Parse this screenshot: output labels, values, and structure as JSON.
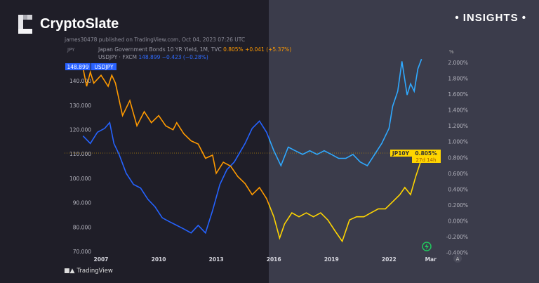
{
  "brand": {
    "name": "CryptoSlate",
    "tag": "• INSIGHTS •"
  },
  "publisher_line": "james30478 published on TradingView.com, Oct 04, 2023 07:26 UTC",
  "legend": {
    "series1_title": "Japan Government Bonds 10 YR Yield, 1M, TVC",
    "series1_value": "0.805%",
    "series1_change": "+0.041 (+5.37%)",
    "series2_title": "USDJPY · FXCM",
    "series2_value": "148.899",
    "series2_change": "−0.423 (−0.28%)",
    "left_unit": "JPY",
    "right_unit": "%"
  },
  "labels": {
    "usdjpy_price": "148.899",
    "usdjpy_name": "USDJPY",
    "jp10y_name": "JP10Y",
    "jp10y_value": "0.805%",
    "jp10y_countdown": "27d 14h",
    "auto_scale": "A",
    "tradingview": "TradingView"
  },
  "colors": {
    "jp10y_left": "#ff9a00",
    "jp10y_right": "#ffd500",
    "usdjpy_left": "#2563ff",
    "usdjpy_right": "#2fa9ff",
    "panel_left": "#1f1e28",
    "panel_right": "#3b3c4b"
  },
  "chart_data": {
    "type": "line",
    "x_ticks": [
      {
        "label": "2007",
        "year": 2007
      },
      {
        "label": "2010",
        "year": 2010
      },
      {
        "label": "2013",
        "year": 2013
      },
      {
        "label": "2016",
        "year": 2016
      },
      {
        "label": "2019",
        "year": 2019
      },
      {
        "label": "2022",
        "year": 2022
      },
      {
        "label": "Mar",
        "year": 2024.17
      }
    ],
    "xlim": [
      2005.1,
      2024.4
    ],
    "left_axis": {
      "ylim": [
        68,
        153
      ],
      "ticks": [
        "70.000",
        "80.000",
        "90.000",
        "100.000",
        "110.000",
        "120.000",
        "130.000",
        "140.000"
      ]
    },
    "right_axis": {
      "ylim": [
        -0.45,
        2.17
      ],
      "ticks": [
        "-0.400%",
        "-0.200%",
        "0.000%",
        "0.200%",
        "0.400%",
        "0.600%",
        "0.800%",
        "1.000%",
        "1.200%",
        "1.400%",
        "1.600%",
        "1.800%",
        "2.000%"
      ]
    },
    "series": [
      {
        "name": "USDJPY",
        "axis": "left",
        "points": [
          [
            2006.06,
            117.4
          ],
          [
            2006.44,
            114.3
          ],
          [
            2006.81,
            118.9
          ],
          [
            2007.19,
            120.5
          ],
          [
            2007.45,
            122.9
          ],
          [
            2007.67,
            114.3
          ],
          [
            2007.94,
            109.8
          ],
          [
            2008.31,
            102.1
          ],
          [
            2008.69,
            97.5
          ],
          [
            2009.06,
            96.0
          ],
          [
            2009.44,
            91.4
          ],
          [
            2009.81,
            88.3
          ],
          [
            2010.19,
            83.8
          ],
          [
            2010.56,
            82.2
          ],
          [
            2010.94,
            80.7
          ],
          [
            2011.31,
            79.2
          ],
          [
            2011.69,
            77.6
          ],
          [
            2012.06,
            80.7
          ],
          [
            2012.44,
            77.6
          ],
          [
            2012.81,
            86.8
          ],
          [
            2013.19,
            97.5
          ],
          [
            2013.56,
            103.6
          ],
          [
            2013.94,
            106.7
          ],
          [
            2014.5,
            114.3
          ],
          [
            2014.87,
            120.5
          ],
          [
            2015.25,
            123.5
          ],
          [
            2015.62,
            118.9
          ],
          [
            2016.0,
            111.3
          ],
          [
            2016.37,
            105.2
          ],
          [
            2016.75,
            112.8
          ],
          [
            2017.12,
            111.3
          ],
          [
            2017.5,
            109.8
          ],
          [
            2017.87,
            111.3
          ],
          [
            2018.25,
            109.8
          ],
          [
            2018.62,
            111.3
          ],
          [
            2019.0,
            109.8
          ],
          [
            2019.37,
            108.2
          ],
          [
            2019.75,
            108.2
          ],
          [
            2020.12,
            109.8
          ],
          [
            2020.5,
            106.7
          ],
          [
            2020.87,
            105.2
          ],
          [
            2021.25,
            109.8
          ],
          [
            2021.62,
            114.3
          ],
          [
            2022.0,
            120.5
          ],
          [
            2022.19,
            129.6
          ],
          [
            2022.45,
            135.7
          ],
          [
            2022.67,
            148.0
          ],
          [
            2022.94,
            134.2
          ],
          [
            2023.12,
            138.8
          ],
          [
            2023.31,
            135.7
          ],
          [
            2023.5,
            144.9
          ],
          [
            2023.69,
            148.9
          ]
        ]
      },
      {
        "name": "JP10Y",
        "axis": "right",
        "points": [
          [
            2006.06,
            1.93
          ],
          [
            2006.25,
            1.7
          ],
          [
            2006.44,
            1.88
          ],
          [
            2006.62,
            1.74
          ],
          [
            2007.0,
            1.84
          ],
          [
            2007.37,
            1.7
          ],
          [
            2007.56,
            1.84
          ],
          [
            2007.75,
            1.74
          ],
          [
            2008.12,
            1.33
          ],
          [
            2008.5,
            1.52
          ],
          [
            2008.87,
            1.2
          ],
          [
            2009.25,
            1.38
          ],
          [
            2009.62,
            1.24
          ],
          [
            2010.0,
            1.33
          ],
          [
            2010.37,
            1.2
          ],
          [
            2010.75,
            1.15
          ],
          [
            2010.94,
            1.24
          ],
          [
            2011.31,
            1.1
          ],
          [
            2011.69,
            1.01
          ],
          [
            2012.06,
            0.97
          ],
          [
            2012.44,
            0.79
          ],
          [
            2012.81,
            0.83
          ],
          [
            2013.0,
            0.6
          ],
          [
            2013.37,
            0.74
          ],
          [
            2013.75,
            0.69
          ],
          [
            2014.12,
            0.56
          ],
          [
            2014.5,
            0.47
          ],
          [
            2014.87,
            0.33
          ],
          [
            2015.25,
            0.42
          ],
          [
            2015.62,
            0.28
          ],
          [
            2016.0,
            0.05
          ],
          [
            2016.3,
            -0.22
          ],
          [
            2016.56,
            -0.04
          ],
          [
            2016.94,
            0.1
          ],
          [
            2017.31,
            0.05
          ],
          [
            2017.69,
            0.1
          ],
          [
            2018.06,
            0.05
          ],
          [
            2018.44,
            0.1
          ],
          [
            2018.81,
            0.01
          ],
          [
            2019.19,
            -0.13
          ],
          [
            2019.56,
            -0.26
          ],
          [
            2019.94,
            0.01
          ],
          [
            2020.31,
            0.05
          ],
          [
            2020.69,
            0.05
          ],
          [
            2021.06,
            0.1
          ],
          [
            2021.44,
            0.15
          ],
          [
            2021.81,
            0.15
          ],
          [
            2022.19,
            0.24
          ],
          [
            2022.56,
            0.33
          ],
          [
            2022.82,
            0.42
          ],
          [
            2023.12,
            0.33
          ],
          [
            2023.39,
            0.56
          ],
          [
            2023.57,
            0.69
          ],
          [
            2023.72,
            0.805
          ]
        ]
      }
    ]
  }
}
